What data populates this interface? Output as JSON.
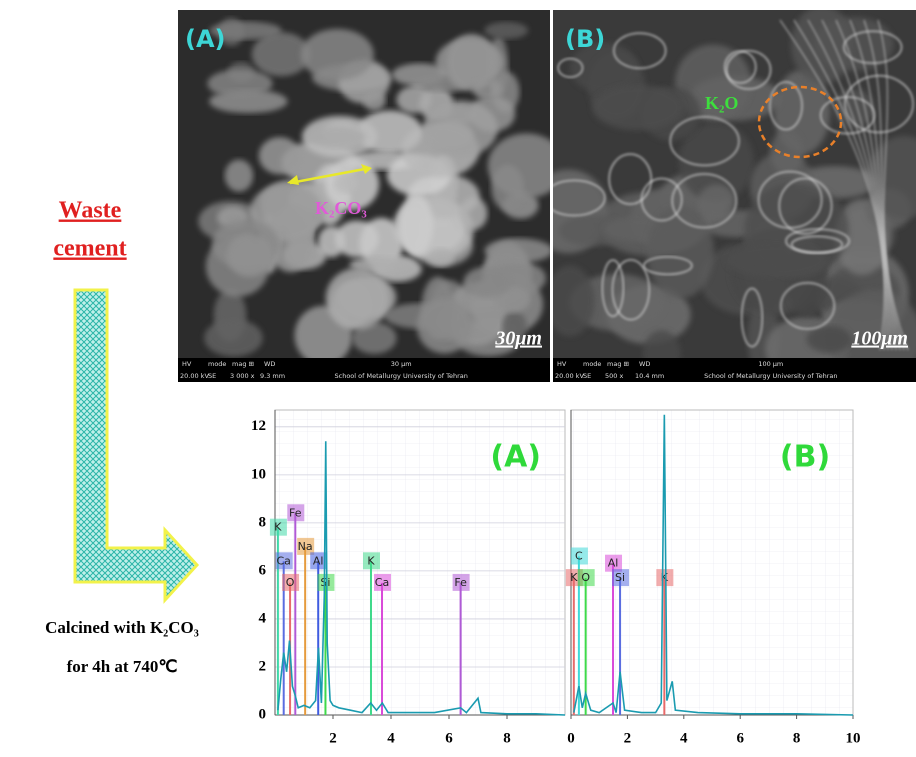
{
  "figure": {
    "left_label": [
      "Waste",
      "cement"
    ],
    "process": [
      "Calcined with K₂CO₃",
      "for 4h at 740℃"
    ]
  },
  "sem_images": [
    {
      "label": "(A)",
      "annotation": "K₂CO₃",
      "scale": "30μm",
      "info": [
        "HV",
        "mode",
        "mag ⊞",
        "WD",
        "30 μm",
        "20.00 kV",
        "SE",
        "3 000 x",
        "9.3 mm",
        "School of Metallurgy University of Tehran"
      ]
    },
    {
      "label": "(B)",
      "annotation": "K₂O",
      "scale": "100μm",
      "info": [
        "HV",
        "mode",
        "mag ⊞",
        "WD",
        "100 μm",
        "20.00 kV",
        "SE",
        "500 x",
        "10.4 mm",
        "School of Metallurgy University of Tehran"
      ]
    }
  ],
  "chart_data": [
    {
      "type": "line",
      "title": "(A)",
      "x": [
        0.1,
        0.2,
        0.3,
        0.4,
        0.5,
        0.6,
        0.7,
        0.8,
        1.0,
        1.2,
        1.4,
        1.5,
        1.6,
        1.7,
        1.75,
        1.8,
        1.9,
        2.0,
        2.2,
        2.6,
        3.0,
        3.3,
        3.5,
        3.7,
        3.9,
        4.5,
        5.5,
        6.4,
        6.6,
        7.0,
        7.1,
        8.0,
        9.0,
        10
      ],
      "series": [
        {
          "color": "#1a9bb0",
          "values": [
            0.2,
            1.5,
            2.6,
            1.8,
            3.1,
            1.2,
            0.8,
            0.3,
            0.4,
            0.3,
            0.6,
            2.8,
            0.5,
            5.0,
            11.4,
            3.0,
            0.6,
            0.4,
            0.3,
            0.2,
            0.1,
            0.5,
            0.2,
            0.5,
            0.1,
            0.1,
            0.1,
            0.3,
            0.1,
            0.7,
            0.1,
            0.05,
            0.05,
            0
          ]
        }
      ],
      "markers": [
        {
          "label": "K",
          "x": 0.1,
          "y": 7.8,
          "color": "#3fd9a8"
        },
        {
          "label": "Fe",
          "x": 0.7,
          "y": 8.4,
          "color": "#b05ad6"
        },
        {
          "label": "Ca",
          "x": 0.3,
          "y": 6.4,
          "color": "#5a6de0"
        },
        {
          "label": "Na",
          "x": 1.04,
          "y": 7.0,
          "color": "#e59a3c"
        },
        {
          "label": "Al",
          "x": 1.49,
          "y": 6.4,
          "color": "#3f5ce0"
        },
        {
          "label": "K",
          "x": 3.31,
          "y": 6.4,
          "color": "#3fd98a"
        },
        {
          "label": "O",
          "x": 0.52,
          "y": 5.5,
          "color": "#e86a6a"
        },
        {
          "label": "Si",
          "x": 1.74,
          "y": 5.5,
          "color": "#3fd94a"
        },
        {
          "label": "Ca",
          "x": 3.69,
          "y": 5.5,
          "color": "#d94ad9"
        },
        {
          "label": "Fe",
          "x": 6.4,
          "y": 5.5,
          "color": "#b05ad6"
        }
      ],
      "xlim": [
        0,
        10
      ],
      "ylim": [
        0,
        12.7
      ],
      "xticks": [
        2,
        4,
        6,
        8
      ],
      "yticks": [
        0,
        2,
        4,
        6,
        8,
        10,
        12
      ]
    },
    {
      "type": "line",
      "title": "(B)",
      "x": [
        0.1,
        0.28,
        0.4,
        0.52,
        0.7,
        1.0,
        1.49,
        1.6,
        1.74,
        1.9,
        2.5,
        3.0,
        3.2,
        3.31,
        3.4,
        3.59,
        3.7,
        4.5,
        6,
        8,
        10
      ],
      "series": [
        {
          "color": "#1a9bb0",
          "values": [
            0.1,
            1.2,
            0.3,
            0.9,
            0.2,
            0.1,
            0.5,
            0.1,
            1.8,
            0.2,
            0.1,
            0.1,
            0.5,
            12.5,
            0.6,
            1.4,
            0.2,
            0.1,
            0.05,
            0.05,
            0
          ]
        }
      ],
      "markers": [
        {
          "label": "C",
          "x": 0.28,
          "y": 6.6,
          "color": "#3fd9d9"
        },
        {
          "label": "K",
          "x": 0.1,
          "y": 5.7,
          "color": "#e86a6a"
        },
        {
          "label": "O",
          "x": 0.52,
          "y": 5.7,
          "color": "#3fd94a"
        },
        {
          "label": "Al",
          "x": 1.49,
          "y": 6.3,
          "color": "#d94ad9"
        },
        {
          "label": "Si",
          "x": 1.74,
          "y": 5.7,
          "color": "#5a6de0"
        },
        {
          "label": "K",
          "x": 3.31,
          "y": 5.7,
          "color": "#e86a6a"
        }
      ],
      "xlim": [
        0,
        10
      ],
      "ylim": [
        0,
        12.7
      ],
      "xticks": [
        0,
        2,
        4,
        6,
        8,
        10
      ]
    }
  ]
}
